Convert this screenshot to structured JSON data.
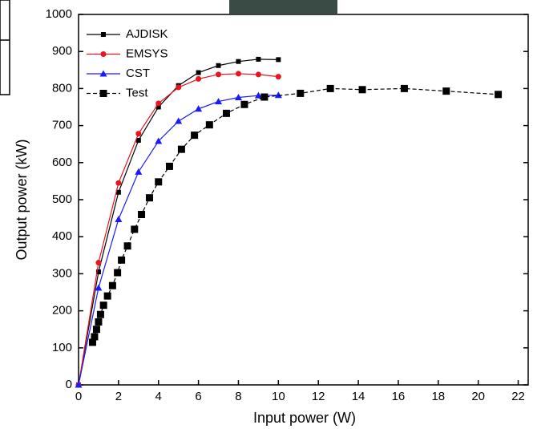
{
  "chart_data": {
    "type": "line",
    "x_label": "Input power (W)",
    "y_label": "Output power (kW)",
    "xlim": [
      0,
      22.5
    ],
    "xticks": [
      0,
      2,
      4,
      6,
      8,
      10,
      12,
      14,
      16,
      18,
      20,
      22
    ],
    "ylim": [
      0,
      1000
    ],
    "yticks": [
      0,
      100,
      200,
      300,
      400,
      500,
      600,
      700,
      800,
      900,
      1000
    ],
    "legend": "upper left",
    "series": [
      {
        "name": "AJDISK",
        "color": "#000000",
        "marker": "square",
        "dash": false,
        "x": [
          0,
          1,
          2,
          3,
          4,
          5,
          6,
          7,
          8,
          9,
          10
        ],
        "values": [
          0,
          305,
          520,
          660,
          750,
          808,
          843,
          862,
          873,
          879,
          878
        ]
      },
      {
        "name": "EMSYS",
        "color": "#e8141e",
        "marker": "circle",
        "dash": false,
        "x": [
          0,
          1,
          2,
          3,
          4,
          5,
          6,
          7,
          8,
          9,
          10
        ],
        "values": [
          0,
          330,
          545,
          678,
          760,
          803,
          826,
          838,
          840,
          838,
          832
        ]
      },
      {
        "name": "CST",
        "color": "#1a1aff",
        "marker": "triangle",
        "dash": false,
        "x": [
          0,
          1,
          2,
          3,
          4,
          5,
          6,
          7,
          8,
          9,
          10
        ],
        "values": [
          0,
          262,
          447,
          575,
          658,
          712,
          745,
          765,
          776,
          781,
          782
        ]
      },
      {
        "name": "Test",
        "color": "#000000",
        "marker": "big-square",
        "dash": true,
        "x": [
          0.7,
          0.8,
          0.9,
          1.0,
          1.1,
          1.25,
          1.45,
          1.7,
          1.95,
          2.15,
          2.45,
          2.8,
          3.15,
          3.55,
          4.0,
          4.55,
          5.15,
          5.8,
          6.55,
          7.4,
          8.3,
          9.3,
          11.1,
          12.6,
          14.2,
          16.3,
          18.4,
          21.0
        ],
        "values": [
          115,
          130,
          150,
          170,
          190,
          215,
          240,
          268,
          303,
          337,
          375,
          420,
          460,
          505,
          548,
          590,
          636,
          674,
          702,
          733,
          757,
          777,
          787,
          800,
          797,
          800,
          793,
          784
        ]
      }
    ]
  }
}
